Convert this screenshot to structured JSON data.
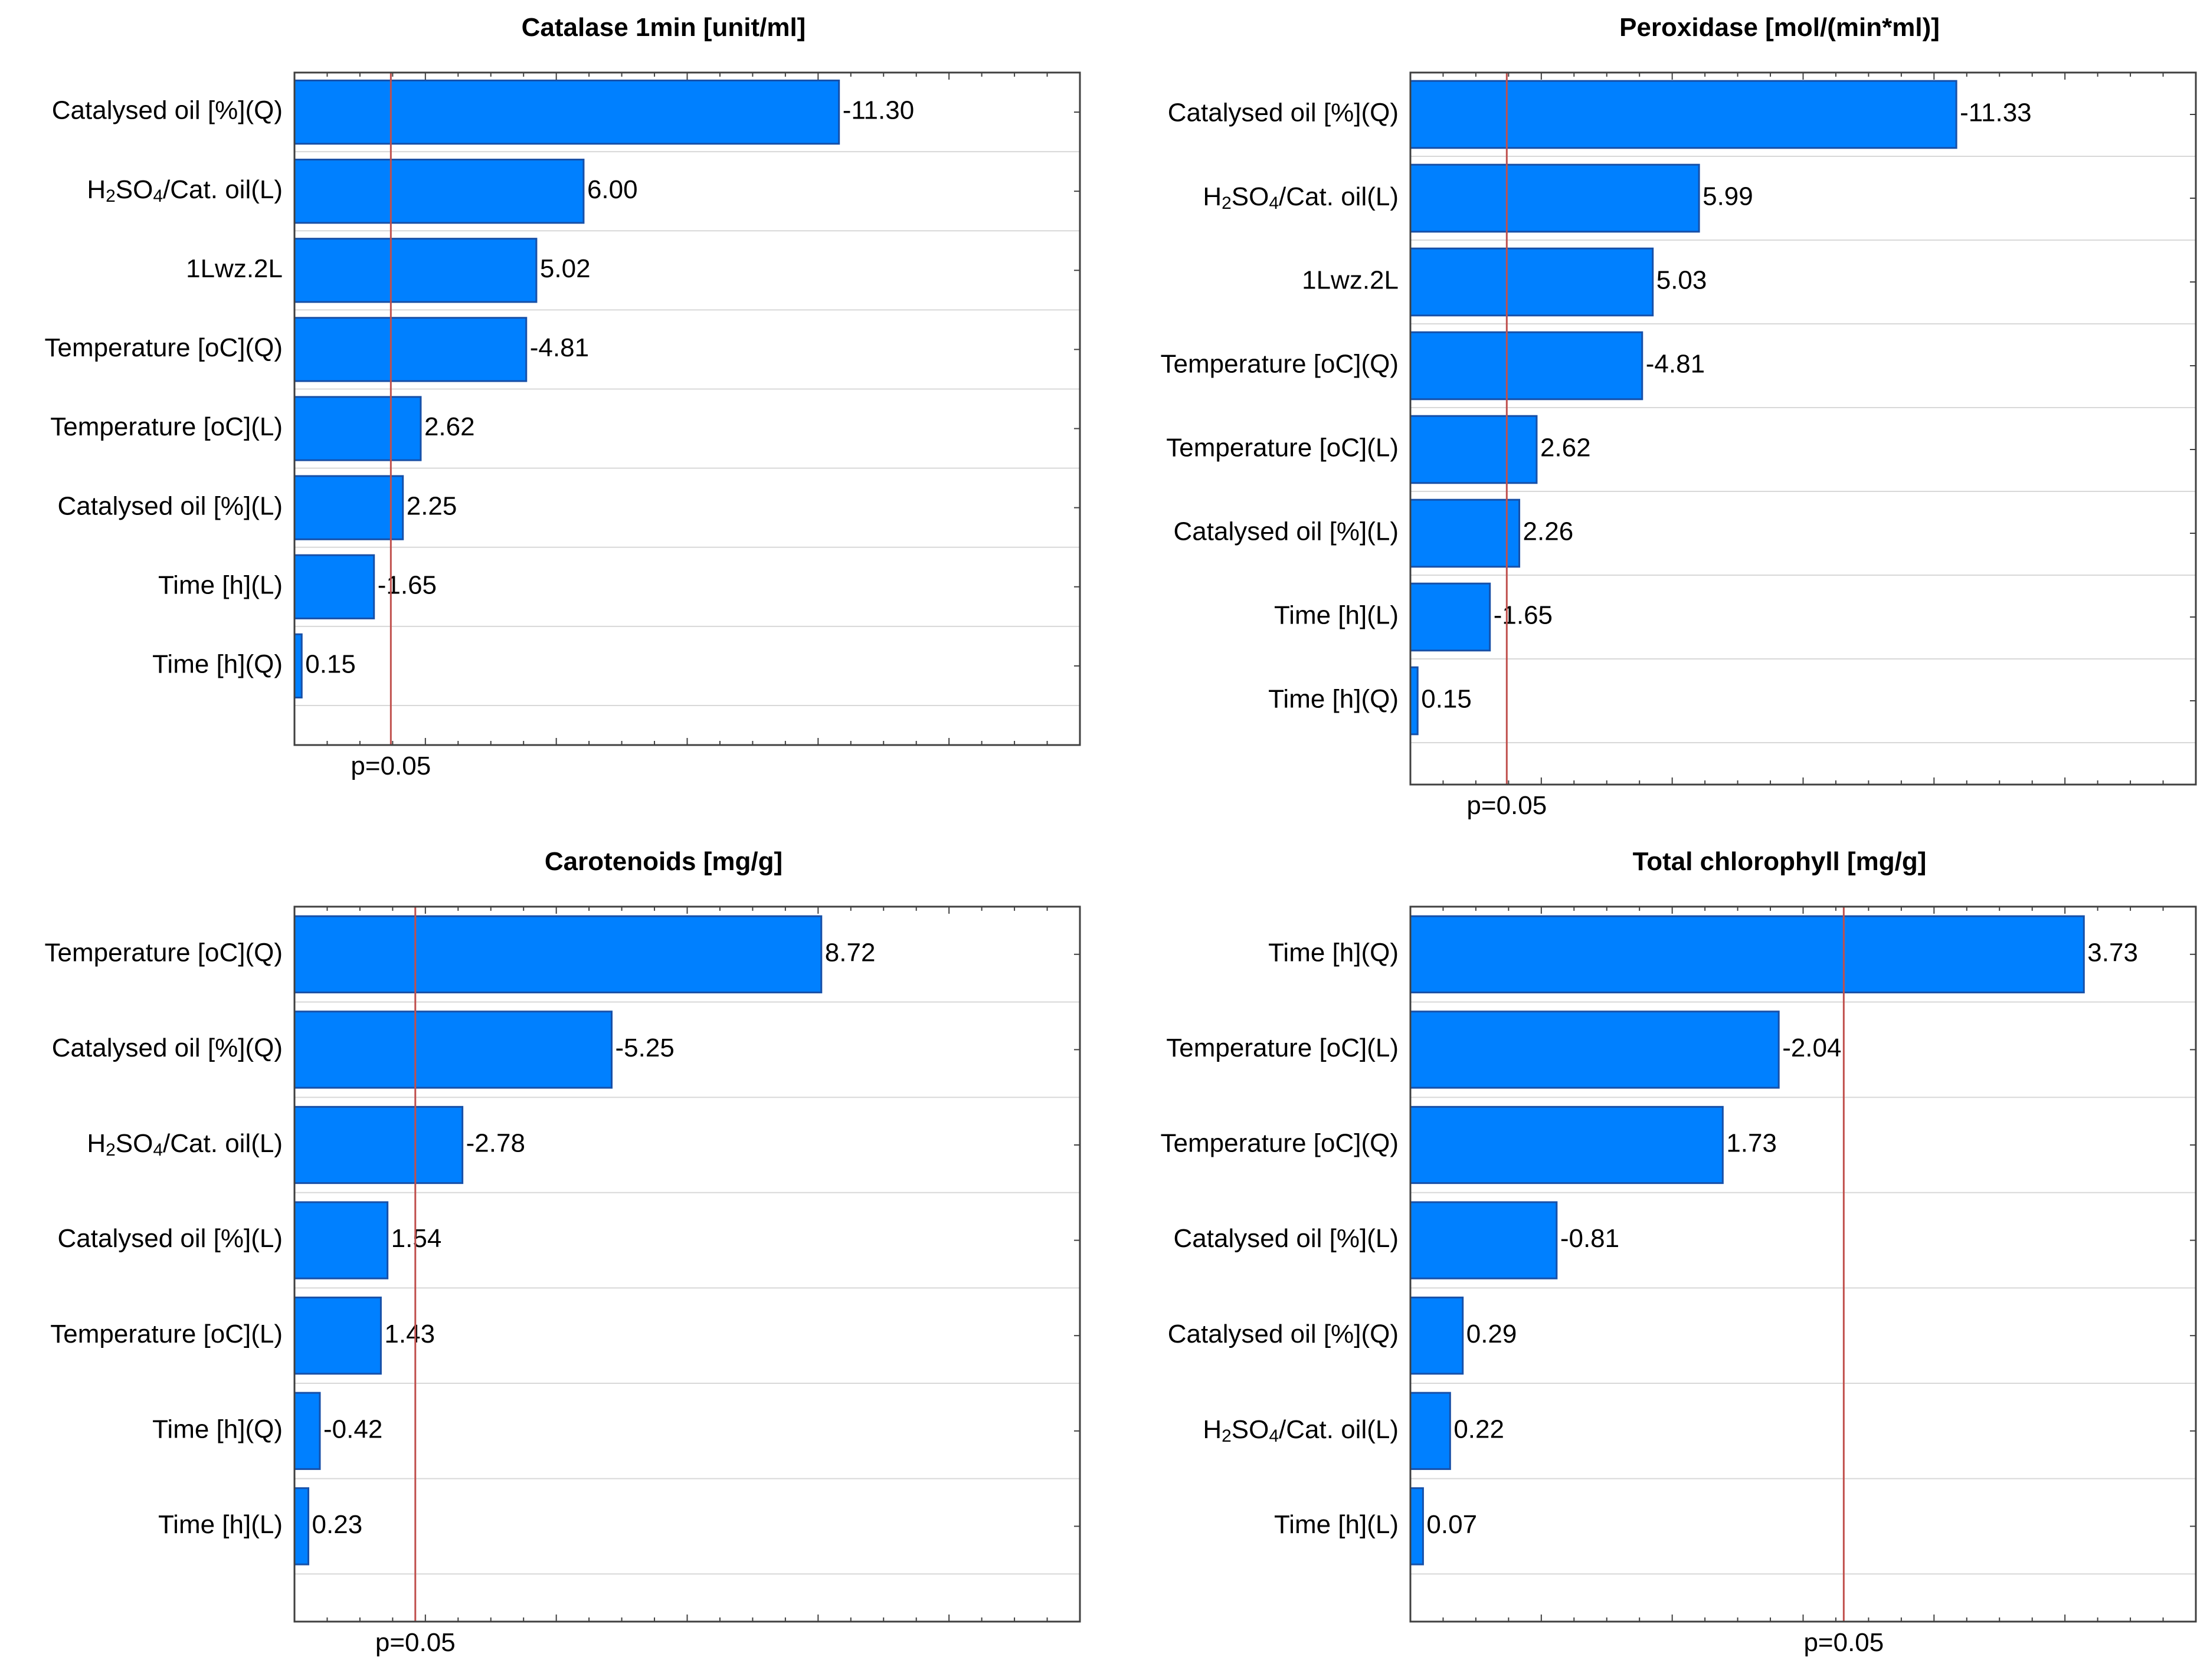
{
  "colors": {
    "bar": "#0080ff",
    "bar_edge": "#1750a8",
    "pline": "#c0504d",
    "grid": "#d8d8d8",
    "frame": "#404040"
  },
  "chart_data": [
    {
      "type": "bar",
      "orientation": "horizontal",
      "title": "Catalase 1min [unit/ml]",
      "p_label": "p=0.05",
      "threshold": 2.0,
      "xmax": 16.3,
      "categories": [
        {
          "main": "Catalysed oil [%](Q)"
        },
        {
          "main": "H",
          "sub1": "2",
          "mid": "SO",
          "sub2": "4",
          "tail": "/Cat. oil(L)"
        },
        {
          "main": "1Lwz.2L"
        },
        {
          "main": "Temperature [oC](Q)"
        },
        {
          "main": "Temperature [oC](L)"
        },
        {
          "main": "Catalysed oil [%](L)"
        },
        {
          "main": "Time [h](L)"
        },
        {
          "main": "Time [h](Q)"
        }
      ],
      "values": [
        11.3,
        6.0,
        5.02,
        4.81,
        2.62,
        2.25,
        1.65,
        0.15
      ],
      "value_labels": [
        "-11.30",
        "6.00",
        "5.02",
        "-4.81",
        "2.62",
        "2.25",
        "-1.65",
        "0.15"
      ]
    },
    {
      "type": "bar",
      "orientation": "horizontal",
      "title": "Peroxidase [mol/(min*ml)]",
      "p_label": "p=0.05",
      "threshold": 2.0,
      "xmax": 16.3,
      "categories": [
        {
          "main": "Catalysed oil [%](Q)"
        },
        {
          "main": "H",
          "sub1": "2",
          "mid": "SO",
          "sub2": "4",
          "tail": "/Cat. oil(L)"
        },
        {
          "main": "1Lwz.2L"
        },
        {
          "main": "Temperature [oC](Q)"
        },
        {
          "main": "Temperature [oC](L)"
        },
        {
          "main": "Catalysed oil [%](L)"
        },
        {
          "main": "Time [h](L)"
        },
        {
          "main": "Time [h](Q)"
        }
      ],
      "values": [
        11.33,
        5.99,
        5.03,
        4.81,
        2.62,
        2.26,
        1.65,
        0.15
      ],
      "value_labels": [
        "-11.33",
        "5.99",
        "5.03",
        "-4.81",
        "2.62",
        "2.26",
        "-1.65",
        "0.15"
      ]
    },
    {
      "type": "bar",
      "orientation": "horizontal",
      "title": "Carotenoids [mg/g]",
      "p_label": "p=0.05",
      "threshold": 2.0,
      "xmax": 13.0,
      "categories": [
        {
          "main": "Temperature [oC](Q)"
        },
        {
          "main": "Catalysed oil [%](Q)"
        },
        {
          "main": "H",
          "sub1": "2",
          "mid": "SO",
          "sub2": "4",
          "tail": "/Cat. oil(L)"
        },
        {
          "main": "Catalysed oil [%](L)"
        },
        {
          "main": "Temperature [oC](L)"
        },
        {
          "main": "Time [h](Q)"
        },
        {
          "main": "Time [h](L)"
        }
      ],
      "values": [
        8.72,
        5.25,
        2.78,
        1.54,
        1.43,
        0.42,
        0.23
      ],
      "value_labels": [
        "8.72",
        "-5.25",
        "-2.78",
        "1.54",
        "1.43",
        "-0.42",
        "0.23"
      ]
    },
    {
      "type": "bar",
      "orientation": "horizontal",
      "title": "Total chlorophyll [mg/g]",
      "p_label": "p=0.05",
      "threshold": 2.4,
      "xmax": 4.35,
      "categories": [
        {
          "main": "Time [h](Q)"
        },
        {
          "main": "Temperature [oC](L)"
        },
        {
          "main": "Temperature [oC](Q)"
        },
        {
          "main": "Catalysed oil [%](L)"
        },
        {
          "main": "Catalysed oil [%](Q)"
        },
        {
          "main": "H",
          "sub1": "2",
          "mid": "SO",
          "sub2": "4",
          "tail": "/Cat. oil(L)"
        },
        {
          "main": "Time [h](L)"
        }
      ],
      "values": [
        3.73,
        2.04,
        1.73,
        0.81,
        0.29,
        0.22,
        0.07
      ],
      "value_labels": [
        "3.73",
        "-2.04",
        "1.73",
        "-0.81",
        "0.29",
        "0.22",
        "0.07"
      ]
    }
  ]
}
